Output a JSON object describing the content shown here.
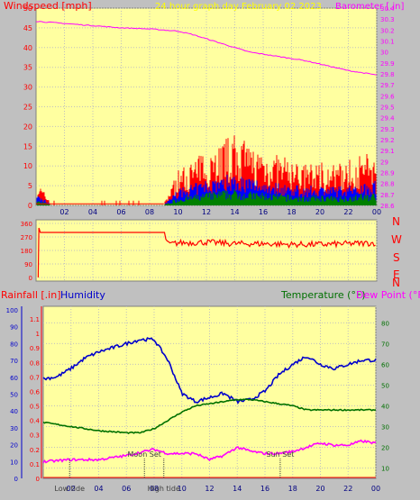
{
  "header": {
    "windspeed_label": "Windspeed [mph]",
    "title": "24 hour graph day   February 02 2023",
    "barometer_label": "Barometer [.in]"
  },
  "middle": {
    "direction_letters": [
      "N",
      "W",
      "S",
      "E",
      "N"
    ]
  },
  "bottom": {
    "rainfall_label": "Rainfall [.in]",
    "humidity_label": "Humidity",
    "temperature_label": "Temperature (°F)",
    "dewpoint_label": "Dew Point (°F)"
  },
  "events": [
    {
      "label": "Low tide",
      "hour": 1.9
    },
    {
      "label": "Moon Set",
      "hour": 7.3
    },
    {
      "label": "High tide",
      "hour": 8.7
    },
    {
      "label": "Sun Set",
      "hour": 17.1
    }
  ],
  "colors": {
    "panel_bg": "#ffffa0",
    "outer_bg": "#c0c0c0",
    "wind": "#ff0000",
    "gust_blue": "#0000ff",
    "gust_green": "#008000",
    "barometer": "#ff00ff",
    "humidity": "#0000cc",
    "temperature": "#007000",
    "dewpoint": "#ff00ff",
    "title": "#ffff00"
  },
  "chart_data": [
    {
      "type": "line",
      "name": "wind-barometer",
      "x_ticks": [
        "02",
        "04",
        "06",
        "08",
        "10",
        "12",
        "14",
        "16",
        "18",
        "20",
        "22",
        "00"
      ],
      "y_left_ticks": [
        0,
        5,
        10,
        15,
        20,
        25,
        30,
        35,
        40,
        45,
        50
      ],
      "y_right_ticks": [
        "28.6",
        "28.7",
        "28.8",
        "28.9",
        "29",
        "29.1",
        "29.2",
        "29.3",
        "29.4",
        "29.5",
        "29.6",
        "29.7",
        "29.8",
        "29.9",
        "30",
        "30.1",
        "30.2",
        "30.3",
        "30.4"
      ],
      "ylim_left": [
        0,
        50
      ],
      "ylim_right": [
        28.6,
        30.4
      ],
      "xlim": [
        0,
        24
      ],
      "barometer": {
        "x": [
          0,
          2,
          4,
          6,
          8,
          9,
          10,
          11,
          12,
          13,
          14,
          15,
          16,
          17,
          18,
          19,
          20,
          21,
          22,
          23,
          24
        ],
        "y": [
          30.28,
          30.26,
          30.24,
          30.22,
          30.21,
          30.2,
          30.19,
          30.16,
          30.12,
          30.08,
          30.04,
          30.0,
          29.98,
          29.96,
          29.94,
          29.92,
          29.89,
          29.86,
          29.83,
          29.81,
          29.79
        ]
      },
      "wind_envelope": {
        "x": [
          0,
          1,
          2,
          4,
          6,
          8,
          9,
          10,
          11,
          12,
          13,
          14,
          15,
          16,
          17,
          18,
          19,
          20,
          21,
          22,
          23,
          24
        ],
        "y": [
          5,
          1,
          0.5,
          0.5,
          0.5,
          0.5,
          0.5,
          7,
          9,
          11,
          13,
          14,
          12,
          11,
          10,
          9,
          8,
          9,
          8,
          9,
          10,
          11
        ]
      }
    },
    {
      "type": "line",
      "name": "wind-direction",
      "y_ticks": [
        0,
        90,
        180,
        270,
        360
      ],
      "ylim": [
        0,
        360
      ],
      "x": [
        0,
        0.2,
        0.3,
        9,
        9.3,
        10,
        12,
        14,
        16,
        18,
        20,
        22,
        24
      ],
      "y": [
        0,
        330,
        300,
        300,
        220,
        230,
        235,
        225,
        225,
        220,
        220,
        225,
        230
      ]
    },
    {
      "type": "line",
      "name": "rain-humidity-temp-dew",
      "y_left_outer_ticks": [
        0,
        10,
        20,
        30,
        40,
        50,
        60,
        70,
        80,
        90,
        100
      ],
      "y_left_inner_ticks": [
        "0",
        "0.1",
        "0.2",
        "0.3",
        "0.4",
        "0.5",
        "0.6",
        "0.7",
        "0.8",
        "0.9",
        "1",
        "1.1"
      ],
      "y_right_ticks": [
        10,
        20,
        30,
        40,
        50,
        60,
        70,
        80
      ],
      "ylim_right": [
        5,
        88
      ],
      "humidity": {
        "x": [
          0,
          1,
          2,
          3,
          4,
          5,
          6,
          7,
          8,
          9,
          10,
          11,
          12,
          13,
          14,
          15,
          16,
          17,
          18,
          19,
          20,
          21,
          22,
          23,
          24
        ],
        "y": [
          53,
          54,
          58,
          63,
          66,
          68,
          70,
          72,
          72,
          62,
          46,
          42,
          44,
          46,
          42,
          43,
          47,
          55,
          60,
          64,
          60,
          58,
          60,
          62,
          62
        ]
      },
      "temperature": {
        "x": [
          0,
          2,
          4,
          6,
          7,
          8,
          9,
          10,
          11,
          12,
          13,
          14,
          15,
          16,
          17,
          18,
          19,
          20,
          21,
          22,
          23,
          24
        ],
        "y": [
          32,
          30,
          28,
          27,
          27,
          29,
          33,
          37,
          40,
          41,
          42,
          43,
          43,
          42,
          41,
          40,
          38,
          38,
          38,
          38,
          38,
          38
        ]
      },
      "dewpoint": {
        "x": [
          0,
          2,
          4,
          6,
          8,
          9,
          10,
          11,
          12,
          13,
          14,
          15,
          16,
          17,
          18,
          19,
          20,
          21,
          22,
          23,
          24
        ],
        "y": [
          13,
          14,
          14,
          16,
          19,
          17,
          17,
          17,
          14,
          16,
          20,
          18,
          17,
          17,
          18,
          20,
          22,
          21,
          21,
          23,
          22
        ]
      },
      "rainfall": {
        "x": [
          0,
          24
        ],
        "y": [
          0,
          0
        ]
      }
    }
  ]
}
